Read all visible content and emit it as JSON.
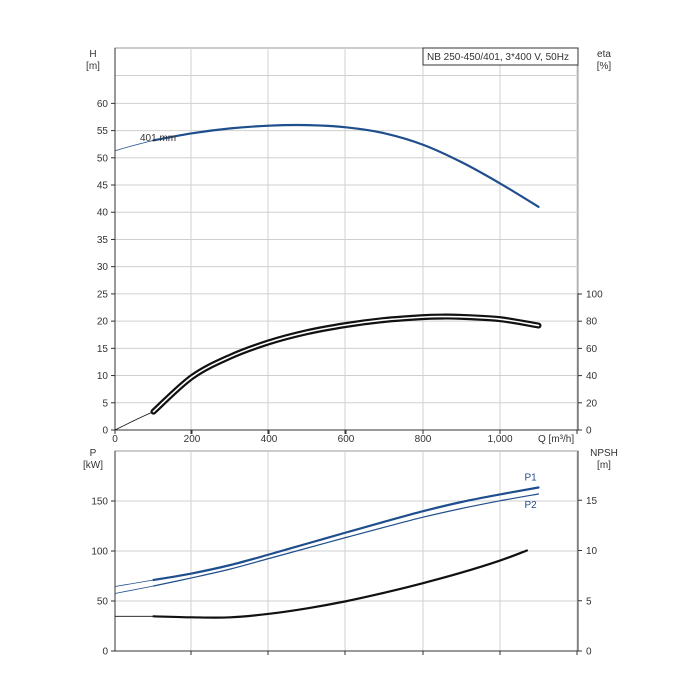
{
  "chart_data": [
    {
      "type": "line",
      "title": "NB 250-450/401, 3*400 V, 50Hz",
      "xlabel": "Q [m³/h]",
      "xlim": [
        0,
        1200
      ],
      "xticks": [
        0,
        200,
        400,
        600,
        800,
        1000
      ],
      "xtick_labels": [
        "0",
        "200",
        "400",
        "600",
        "800",
        "1,000"
      ],
      "left_axis": {
        "label_top": "H",
        "label_bottom": "[m]",
        "ylim": [
          0,
          65
        ],
        "ticks": [
          0,
          5,
          10,
          15,
          20,
          25,
          30,
          35,
          40,
          45,
          50,
          55,
          60
        ]
      },
      "right_axis": {
        "label_top": "eta",
        "label_bottom": "[%]",
        "ylim": [
          0,
          100
        ],
        "ticks": [
          0,
          20,
          40,
          60,
          80,
          100
        ]
      },
      "grid": true,
      "series": [
        {
          "name": "401 mm",
          "axis": "left",
          "color": "#1f4e8c",
          "extension": {
            "x": [
              0,
              50,
              100
            ],
            "y": [
              51.3,
              52.3,
              53.2
            ]
          },
          "x": [
            100,
            200,
            300,
            400,
            500,
            600,
            700,
            800,
            900,
            1000,
            1100
          ],
          "y": [
            53.2,
            54.5,
            55.4,
            55.9,
            56.0,
            55.6,
            54.5,
            52.4,
            49.2,
            45.3,
            41.0
          ]
        },
        {
          "axis": "right",
          "color": "#111111",
          "extension": {
            "x": [
              0,
              50,
              100
            ],
            "y": [
              0,
              7,
              13.5
            ]
          },
          "x": [
            100,
            200,
            300,
            400,
            500,
            600,
            700,
            800,
            850,
            900,
            1000,
            1100
          ],
          "y": [
            13.5,
            39,
            54,
            64.5,
            72,
            77.2,
            80.9,
            83.0,
            83.4,
            83.2,
            81.5,
            76.8
          ]
        }
      ]
    },
    {
      "type": "line",
      "xlim": [
        0,
        1200
      ],
      "left_axis": {
        "label_top": "P",
        "label_bottom": "[kW]",
        "ylim": [
          0,
          200
        ],
        "ticks": [
          0,
          50,
          100,
          150
        ]
      },
      "right_axis": {
        "label_top": "NPSH",
        "label_bottom": "[m]",
        "ylim": [
          0,
          20
        ],
        "ticks": [
          0,
          5,
          10,
          15
        ]
      },
      "grid": true,
      "series": [
        {
          "name": "P1",
          "axis": "left",
          "color": "#1f4e8c",
          "extension": {
            "x": [
              0,
              100
            ],
            "y": [
              64.5,
              71.0
            ]
          },
          "x": [
            100,
            200,
            300,
            400,
            500,
            600,
            700,
            800,
            900,
            1000,
            1100
          ],
          "y": [
            71.0,
            77.6,
            86.0,
            96.5,
            107.5,
            118.5,
            129.3,
            139.8,
            149.0,
            156.6,
            163.5
          ]
        },
        {
          "name": "P2",
          "axis": "left",
          "color": "#1f4e8c",
          "extension": {
            "x": [
              0,
              100
            ],
            "y": [
              57.5,
              65.0
            ]
          },
          "x": [
            100,
            200,
            300,
            400,
            500,
            600,
            700,
            800,
            900,
            1000,
            1100
          ],
          "y": [
            65.0,
            73.2,
            82.0,
            92.5,
            103.0,
            113.5,
            123.8,
            133.8,
            142.5,
            150.2,
            157.0
          ]
        },
        {
          "axis": "right",
          "color": "#111111",
          "extension": {
            "x": [
              0,
              100
            ],
            "y": [
              3.45,
              3.45
            ]
          },
          "x": [
            100,
            200,
            300,
            400,
            500,
            600,
            700,
            800,
            900,
            1000,
            1070
          ],
          "y": [
            3.45,
            3.35,
            3.35,
            3.7,
            4.25,
            4.95,
            5.8,
            6.75,
            7.8,
            9.0,
            10.0
          ]
        }
      ]
    }
  ]
}
